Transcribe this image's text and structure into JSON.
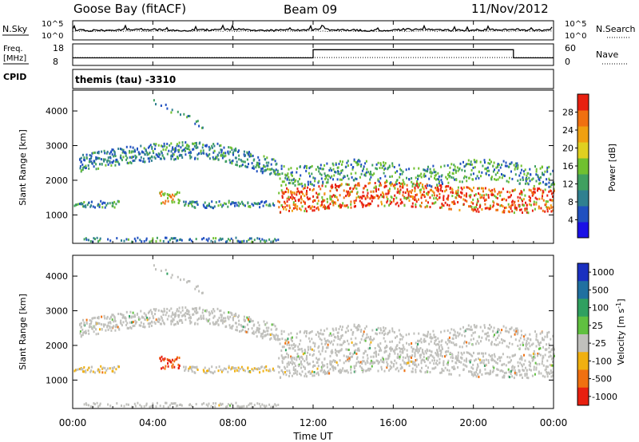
{
  "header": {
    "radar": "Goose Bay (fitACF)",
    "beam": "Beam 09",
    "date": "11/Nov/2012"
  },
  "noise_panel": {
    "left_label": "N.Sky",
    "right_label": "N.Search",
    "left_ticks": [
      "10^5",
      "10^0"
    ],
    "right_ticks": [
      "10^5",
      "10^0"
    ]
  },
  "freq_panel": {
    "left_label_line1": "Freq.",
    "left_label_line2": "[MHz]",
    "right_label": "Nave",
    "left_ticks": [
      "18",
      "8"
    ],
    "right_ticks": [
      "60",
      "0"
    ],
    "cpid_label": "CPID",
    "cpid_text": "themis (tau) -3310",
    "freq_step": {
      "low_mhz": 11.5,
      "high_mhz": 15.3,
      "start_hour": 12.0,
      "end_hour": 22.0
    },
    "nave_level": 22
  },
  "chart_data": [
    {
      "type": "heatmap",
      "name": "power",
      "ylabel": "Slant Range [km]",
      "ylim": [
        180,
        4600
      ],
      "yticks": [
        "1000",
        "2000",
        "3000",
        "4000"
      ],
      "yticks_values": [
        1000,
        2000,
        3000,
        4000
      ],
      "colorbar_label": "Power [dB]",
      "colorbar_ticks": [
        "4",
        "8",
        "12",
        "16",
        "20",
        "24",
        "28"
      ],
      "colorbar_colors": [
        "#1a10e6",
        "#2050c0",
        "#308090",
        "#40a060",
        "#70c030",
        "#e0d020",
        "#f0a010",
        "#f07010",
        "#e82010"
      ],
      "colorbar_range": [
        0,
        32
      ]
    },
    {
      "type": "heatmap",
      "name": "velocity",
      "ylabel": "Slant Range [km]",
      "ylim": [
        180,
        4600
      ],
      "yticks": [
        "1000",
        "2000",
        "3000",
        "4000"
      ],
      "yticks_values": [
        1000,
        2000,
        3000,
        4000
      ],
      "colorbar_label": "Velocity [m s^-1]",
      "colorbar_ticks": [
        "1000",
        "500",
        "100",
        "25",
        "-25",
        "-100",
        "-500",
        "-1000"
      ],
      "colorbar_colors": [
        "#1a30c0",
        "#2070a0",
        "#30a060",
        "#60c040",
        "#c0c0bc",
        "#f0b010",
        "#f07010",
        "#e82010"
      ]
    }
  ],
  "xaxis": {
    "label": "Time UT",
    "ticks": [
      "00:00",
      "04:00",
      "08:00",
      "12:00",
      "16:00",
      "20:00",
      "00:00"
    ],
    "tick_hours": [
      0,
      4,
      8,
      12,
      16,
      20,
      24
    ]
  },
  "colors": {
    "ground_scatter": "#c0c0bc"
  }
}
